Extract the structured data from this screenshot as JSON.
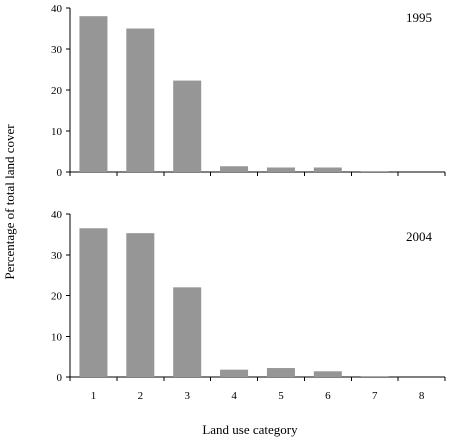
{
  "chart_data": {
    "type": "bar",
    "xlabel": "Land use category",
    "ylabel": "Percentage of total land cover",
    "categories": [
      "1",
      "2",
      "3",
      "4",
      "5",
      "6",
      "7",
      "8"
    ],
    "ylim": [
      0,
      40
    ],
    "yticks": [
      0,
      10,
      20,
      30,
      40
    ],
    "grid": false,
    "panels": [
      {
        "label": "1995",
        "values": [
          38.0,
          35.0,
          22.3,
          1.4,
          1.1,
          1.1,
          0.2,
          0.0
        ]
      },
      {
        "label": "2004",
        "values": [
          36.5,
          35.3,
          22.0,
          1.8,
          2.2,
          1.4,
          0.2,
          0.0
        ]
      }
    ]
  }
}
